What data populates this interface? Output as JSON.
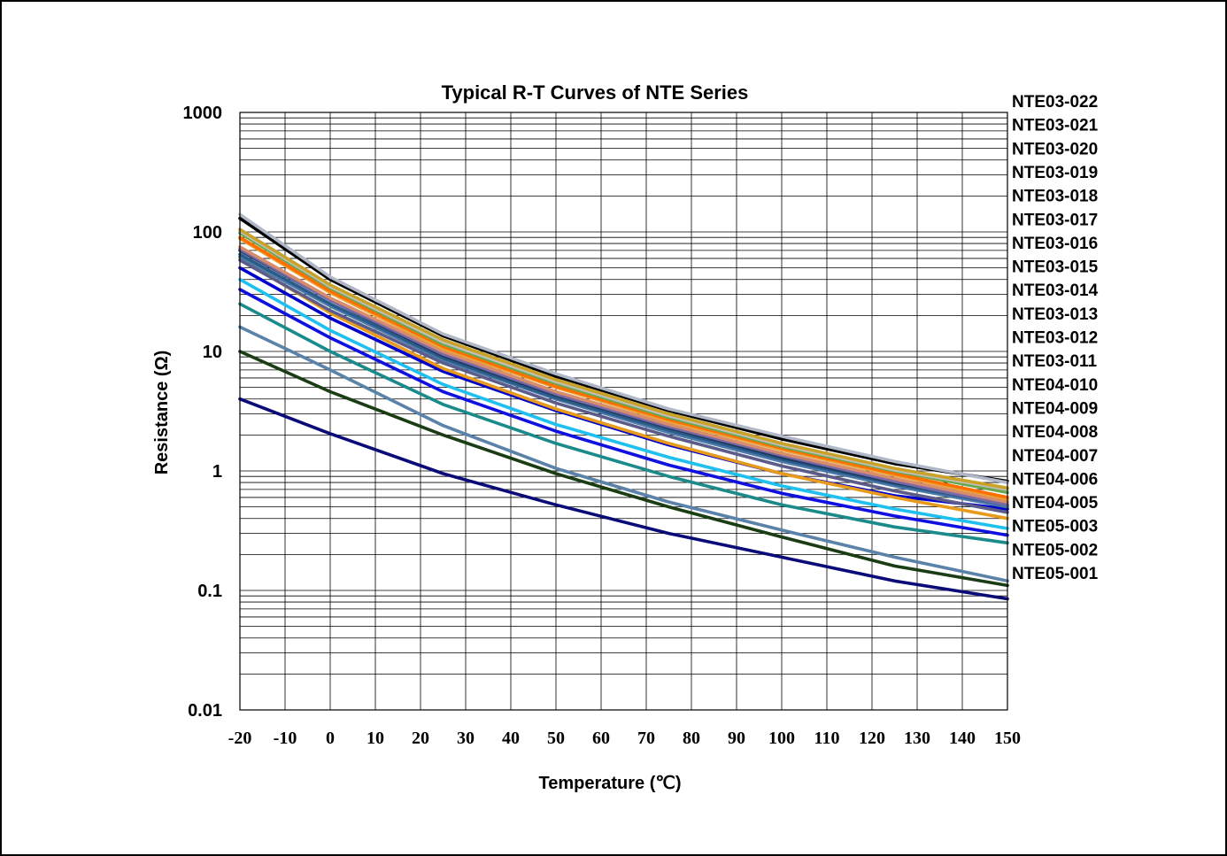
{
  "chart_data": {
    "type": "line",
    "title": "Typical R-T Curves of NTE Series",
    "xlabel": "Temperature (℃)",
    "ylabel": "Resistance (Ω)",
    "x_scale": "linear",
    "y_scale": "log",
    "xlim": [
      -20,
      150
    ],
    "ylim": [
      0.01,
      1000
    ],
    "x_ticks": [
      "-20",
      "-10",
      "0",
      "10",
      "20",
      "30",
      "40",
      "50",
      "60",
      "70",
      "80",
      "90",
      "100",
      "110",
      "120",
      "130",
      "140",
      "150"
    ],
    "y_ticks": [
      "0.01",
      "0.1",
      "1",
      "10",
      "100",
      "1000"
    ],
    "grid": true,
    "legend_position": "right",
    "x": [
      -20,
      0,
      25,
      50,
      75,
      100,
      125,
      150
    ],
    "series": [
      {
        "name": "NTE03-022",
        "color": "#b0b8c8",
        "values": [
          140,
          42,
          14,
          6.5,
          3.3,
          1.95,
          1.2,
          0.8
        ]
      },
      {
        "name": "NTE03-021",
        "color": "#000000",
        "values": [
          130,
          40,
          13.5,
          6.2,
          3.2,
          1.85,
          1.15,
          0.82
        ]
      },
      {
        "name": "NTE03-020",
        "color": "#c9a227",
        "values": [
          105,
          36,
          12.5,
          5.8,
          3.0,
          1.7,
          1.05,
          0.72
        ]
      },
      {
        "name": "NTE03-019",
        "color": "#c0c0c0",
        "values": [
          102,
          35,
          12,
          5.6,
          2.9,
          1.65,
          1.02,
          0.7
        ]
      },
      {
        "name": "NTE03-018",
        "color": "#6aa84f",
        "values": [
          98,
          34,
          11.5,
          5.4,
          2.8,
          1.6,
          1.0,
          0.66
        ]
      },
      {
        "name": "NTE03-017",
        "color": "#ff6f00",
        "values": [
          90,
          32,
          11,
          5.1,
          2.7,
          1.55,
          0.95,
          0.6
        ]
      },
      {
        "name": "NTE03-016",
        "color": "#e8a33c",
        "values": [
          88,
          31,
          10.5,
          5.0,
          2.6,
          1.5,
          0.92,
          0.58
        ]
      },
      {
        "name": "NTE03-015",
        "color": "#d98c6a",
        "values": [
          75,
          28,
          10,
          4.6,
          2.45,
          1.4,
          0.86,
          0.55
        ]
      },
      {
        "name": "NTE03-014",
        "color": "#7a6aa8",
        "values": [
          72,
          27,
          9.5,
          4.4,
          2.35,
          1.35,
          0.82,
          0.52
        ]
      },
      {
        "name": "NTE03-013",
        "color": "#1f3a5f",
        "values": [
          70,
          27,
          9.2,
          4.3,
          2.3,
          1.3,
          0.8,
          0.55
        ]
      },
      {
        "name": "NTE03-012",
        "color": "#2b5b8a",
        "values": [
          65,
          25,
          8.8,
          4.1,
          2.2,
          1.25,
          0.78,
          0.52
        ]
      },
      {
        "name": "NTE03-011",
        "color": "#4a7aa8",
        "values": [
          62,
          24,
          8.5,
          4.0,
          2.1,
          1.2,
          0.75,
          0.5
        ]
      },
      {
        "name": "NTE04-010",
        "color": "#5c5c8a",
        "values": [
          58,
          22,
          8,
          3.7,
          1.95,
          1.1,
          0.68,
          0.45
        ]
      },
      {
        "name": "NTE04-009",
        "color": "#e89a1c",
        "values": [
          60,
          21,
          7.2,
          3.3,
          1.7,
          0.95,
          0.6,
          0.4
        ]
      },
      {
        "name": "NTE04-008",
        "color": "#0000cc",
        "values": [
          50,
          19,
          6.8,
          3.2,
          1.65,
          0.95,
          0.62,
          0.48
        ]
      },
      {
        "name": "NTE04-007",
        "color": "#1ec0f0",
        "values": [
          40,
          15,
          5.3,
          2.45,
          1.3,
          0.75,
          0.48,
          0.33
        ]
      },
      {
        "name": "NTE04-006",
        "color": "#1010e0",
        "values": [
          33,
          13,
          4.6,
          2.15,
          1.12,
          0.65,
          0.42,
          0.29
        ]
      },
      {
        "name": "NTE04-005",
        "color": "#1a8a8a",
        "values": [
          25,
          10,
          3.6,
          1.7,
          0.9,
          0.52,
          0.34,
          0.25
        ]
      },
      {
        "name": "NTE05-003",
        "color": "#5b82a8",
        "values": [
          16,
          7,
          2.4,
          1.05,
          0.55,
          0.32,
          0.19,
          0.12
        ]
      },
      {
        "name": "NTE05-002",
        "color": "#1a3d14",
        "values": [
          10,
          4.6,
          2.0,
          0.95,
          0.5,
          0.28,
          0.16,
          0.11
        ]
      },
      {
        "name": "NTE05-001",
        "color": "#0a0a78",
        "values": [
          4.0,
          2.05,
          0.95,
          0.52,
          0.3,
          0.19,
          0.12,
          0.085
        ]
      }
    ]
  }
}
